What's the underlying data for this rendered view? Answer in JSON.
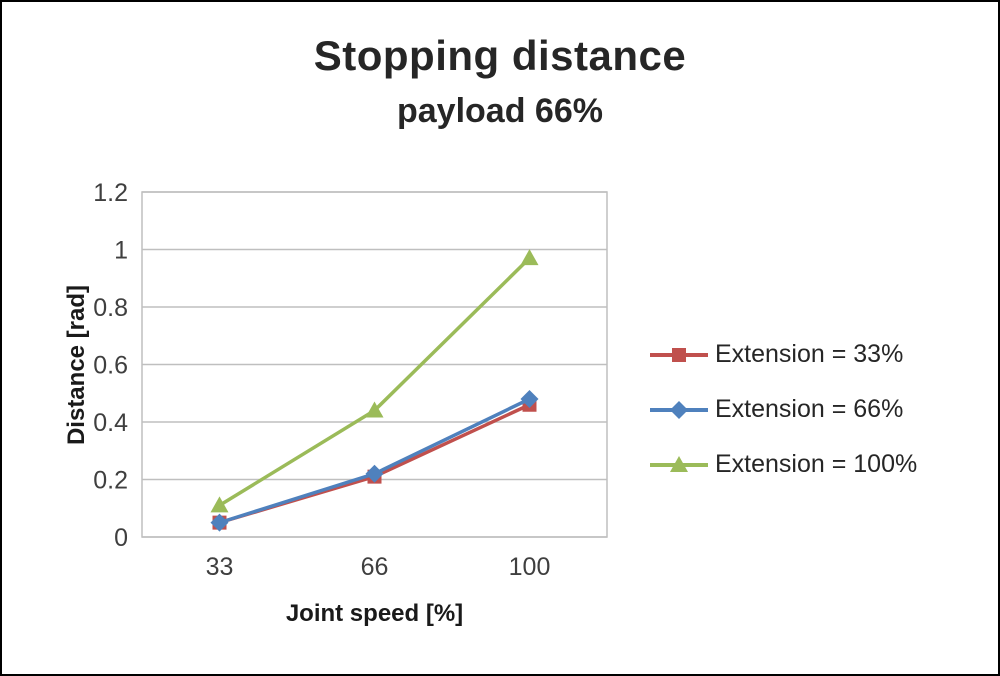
{
  "chart_data": {
    "type": "line",
    "title": "Stopping distance",
    "subtitle": "payload 66%",
    "xlabel": "Joint speed [%]",
    "ylabel": "Distance [rad]",
    "categories": [
      "33",
      "66",
      "100"
    ],
    "ylim": [
      0,
      1.2
    ],
    "yticks": [
      0,
      0.2,
      0.4,
      0.6,
      0.8,
      1,
      1.2
    ],
    "ytick_labels": [
      "0",
      "0.2",
      "0.4",
      "0.6",
      "0.8",
      "1",
      "1.2"
    ],
    "grid": true,
    "legend_position": "right",
    "colors": {
      "grid": "#bfbfbf",
      "plot_border": "#bfbfbf",
      "tick_text": "#3f3f3f"
    },
    "series": [
      {
        "name": "Extension = 33%",
        "marker": "square",
        "color": "#c0504d",
        "values": [
          0.05,
          0.21,
          0.46
        ]
      },
      {
        "name": "Extension = 66%",
        "marker": "diamond",
        "color": "#4f81bd",
        "values": [
          0.05,
          0.22,
          0.48
        ]
      },
      {
        "name": "Extension = 100%",
        "marker": "triangle",
        "color": "#9bbb59",
        "values": [
          0.11,
          0.44,
          0.97
        ]
      }
    ]
  }
}
